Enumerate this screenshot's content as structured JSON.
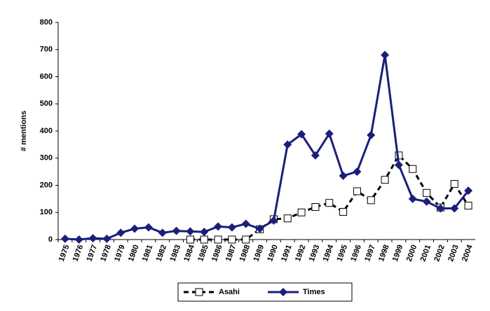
{
  "chart_data": {
    "type": "line",
    "y_label": "# mentions",
    "categories": [
      "1975",
      "1976",
      "1977",
      "1978",
      "1979",
      "1980",
      "1981",
      "1982",
      "1983",
      "1984",
      "1985",
      "1986",
      "1987",
      "1988",
      "1989",
      "1990",
      "1991",
      "1992",
      "1993",
      "1994",
      "1995",
      "1996",
      "1997",
      "1998",
      "1999",
      "2000",
      "2001",
      "2002",
      "2003",
      "2004"
    ],
    "series": [
      {
        "name": "Asahi",
        "color": "#000000",
        "values": [
          null,
          null,
          null,
          null,
          null,
          null,
          null,
          null,
          null,
          0,
          0,
          0,
          0,
          0,
          38,
          75,
          78,
          100,
          120,
          135,
          102,
          178,
          145,
          220,
          310,
          260,
          172,
          118,
          205,
          125
        ]
      },
      {
        "name": "Times",
        "color": "#1a1f7a",
        "values": [
          3,
          0,
          5,
          3,
          25,
          40,
          45,
          25,
          32,
          30,
          28,
          48,
          45,
          58,
          40,
          70,
          350,
          388,
          310,
          390,
          235,
          250,
          385,
          680,
          275,
          150,
          140,
          115,
          115,
          180
        ]
      }
    ],
    "ylim": [
      0,
      800
    ],
    "yticks": [
      0,
      100,
      200,
      300,
      400,
      500,
      600,
      700,
      800
    ],
    "legend": "bottom"
  }
}
